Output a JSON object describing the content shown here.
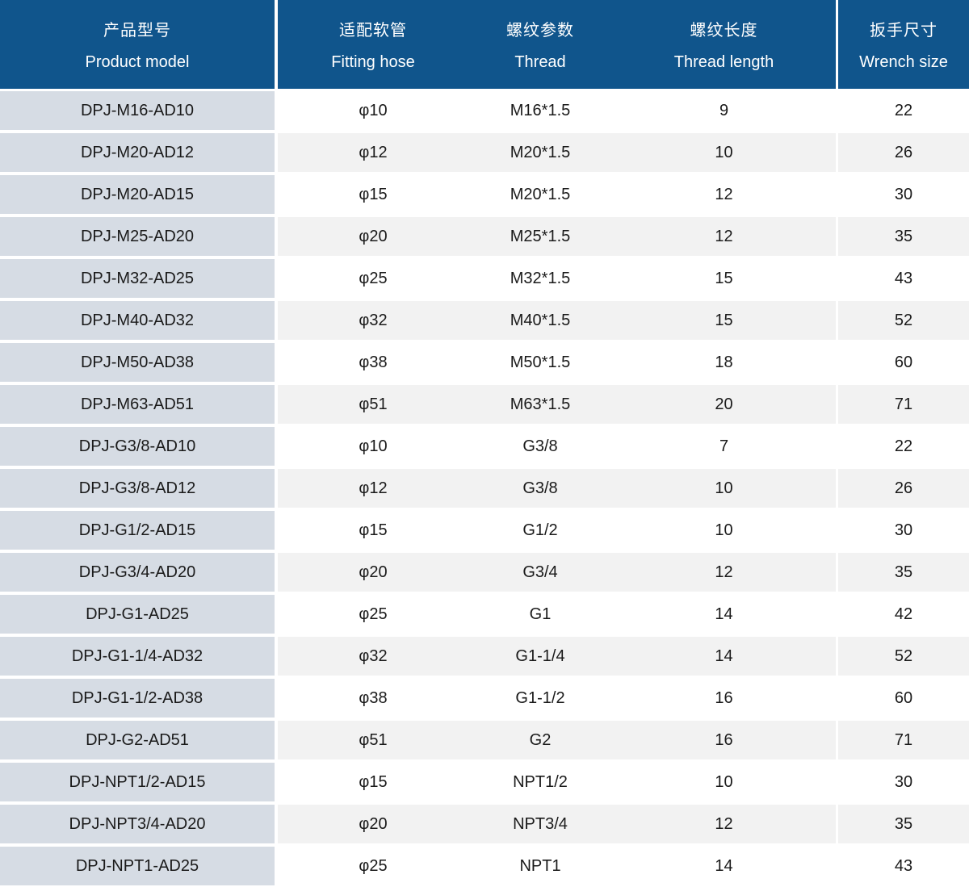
{
  "header": {
    "columns": [
      {
        "zh": "产品型号",
        "en": "Product model"
      },
      {
        "zh": "适配软管",
        "en": "Fitting hose"
      },
      {
        "zh": "螺纹参数",
        "en": "Thread"
      },
      {
        "zh": "螺纹长度",
        "en": "Thread length"
      },
      {
        "zh": "扳手尺寸",
        "en": "Wrench size"
      }
    ]
  },
  "chart_data": {
    "type": "table",
    "columns": [
      "产品型号 Product model",
      "适配软管 Fitting hose",
      "螺纹参数 Thread",
      "螺纹长度 Thread length",
      "扳手尺寸 Wrench size"
    ],
    "rows": [
      [
        "DPJ-M16-AD10",
        "φ10",
        "M16*1.5",
        "9",
        "22"
      ],
      [
        "DPJ-M20-AD12",
        "φ12",
        "M20*1.5",
        "10",
        "26"
      ],
      [
        "DPJ-M20-AD15",
        "φ15",
        "M20*1.5",
        "12",
        "30"
      ],
      [
        "DPJ-M25-AD20",
        "φ20",
        "M25*1.5",
        "12",
        "35"
      ],
      [
        "DPJ-M32-AD25",
        "φ25",
        "M32*1.5",
        "15",
        "43"
      ],
      [
        "DPJ-M40-AD32",
        "φ32",
        "M40*1.5",
        "15",
        "52"
      ],
      [
        "DPJ-M50-AD38",
        "φ38",
        "M50*1.5",
        "18",
        "60"
      ],
      [
        "DPJ-M63-AD51",
        "φ51",
        "M63*1.5",
        "20",
        "71"
      ],
      [
        "DPJ-G3/8-AD10",
        "φ10",
        "G3/8",
        "7",
        "22"
      ],
      [
        "DPJ-G3/8-AD12",
        "φ12",
        "G3/8",
        "10",
        "26"
      ],
      [
        "DPJ-G1/2-AD15",
        "φ15",
        "G1/2",
        "10",
        "30"
      ],
      [
        "DPJ-G3/4-AD20",
        "φ20",
        "G3/4",
        "12",
        "35"
      ],
      [
        "DPJ-G1-AD25",
        "φ25",
        "G1",
        "14",
        "42"
      ],
      [
        "DPJ-G1-1/4-AD32",
        "φ32",
        "G1-1/4",
        "14",
        "52"
      ],
      [
        "DPJ-G1-1/2-AD38",
        "φ38",
        "G1-1/2",
        "16",
        "60"
      ],
      [
        "DPJ-G2-AD51",
        "φ51",
        "G2",
        "16",
        "71"
      ],
      [
        "DPJ-NPT1/2-AD15",
        "φ15",
        "NPT1/2",
        "10",
        "30"
      ],
      [
        "DPJ-NPT3/4-AD20",
        "φ20",
        "NPT3/4",
        "12",
        "35"
      ],
      [
        "DPJ-NPT1-AD25",
        "φ25",
        "NPT1",
        "14",
        "43"
      ]
    ]
  },
  "colors": {
    "header_bg": "#10558C",
    "header_text": "#FFFFFF",
    "model_column_bg": "#D6DCE4",
    "row_bg": "#FFFFFF",
    "row_alt_bg": "#F2F2F2",
    "body_text": "#1A1A1A"
  }
}
